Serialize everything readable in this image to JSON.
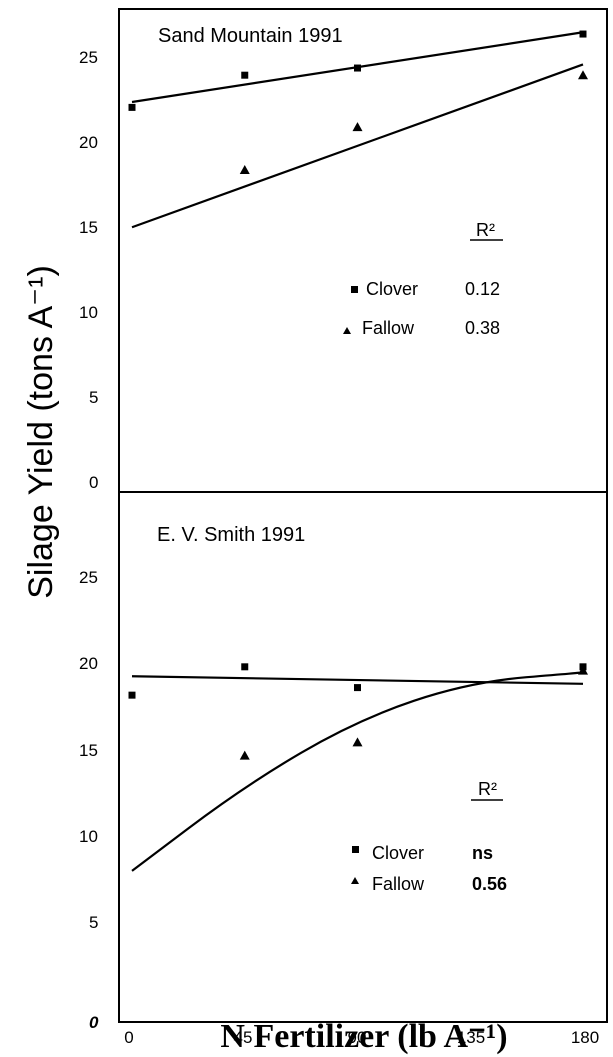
{
  "colors": {
    "ink": "#000000",
    "background": "#ffffff"
  },
  "chart_data": [
    {
      "type": "scatter",
      "title": "Sand Mountain 1991",
      "xlabel": "N Fertilizer (lb A⁻¹)",
      "ylabel": "Silage Yield (tons A⁻¹)",
      "xlim": [
        0,
        180
      ],
      "ylim": [
        0,
        27
      ],
      "x_ticks": [
        "0",
        "45",
        "90",
        "135",
        "180"
      ],
      "y_ticks": [
        "0",
        "5",
        "10",
        "15",
        "20",
        "25"
      ],
      "grid": false,
      "legend_title": "R²",
      "series": [
        {
          "name": "Clover",
          "marker": "square",
          "r2": "0.12",
          "points": [
            [
              0,
              21.5
            ],
            [
              45,
              23.3
            ],
            [
              90,
              23.7
            ],
            [
              180,
              25.6
            ]
          ],
          "fit": {
            "kind": "linear",
            "points": [
              [
                0,
                21.8
              ],
              [
                180,
                25.7
              ]
            ]
          }
        },
        {
          "name": "Fallow",
          "marker": "triangle",
          "r2": "0.38",
          "points": [
            [
              45,
              18.0
            ],
            [
              90,
              20.4
            ],
            [
              180,
              23.3
            ]
          ],
          "fit": {
            "kind": "linear",
            "points": [
              [
                0,
                14.8
              ],
              [
                180,
                23.9
              ]
            ]
          }
        }
      ]
    },
    {
      "type": "scatter",
      "title": "E. V. Smith 1991",
      "xlabel": "N Fertilizer (lb A⁻¹)",
      "ylabel": "Silage Yield (tons A⁻¹)",
      "xlim": [
        0,
        180
      ],
      "ylim": [
        0,
        28
      ],
      "x_ticks": [
        "0",
        "45",
        "90",
        "135",
        "180"
      ],
      "y_ticks": [
        "0",
        "5",
        "10",
        "15",
        "20",
        "25"
      ],
      "grid": false,
      "legend_title": "R²",
      "series": [
        {
          "name": "Clover",
          "marker": "square",
          "r2": "ns",
          "points": [
            [
              0,
              17.3
            ],
            [
              45,
              18.8
            ],
            [
              90,
              17.7
            ],
            [
              180,
              18.8
            ]
          ],
          "fit": {
            "kind": "linear",
            "points": [
              [
                0,
                18.3
              ],
              [
                180,
                17.9
              ]
            ]
          }
        },
        {
          "name": "Fallow",
          "marker": "triangle",
          "r2": "0.56",
          "points": [
            [
              45,
              14.1
            ],
            [
              90,
              14.8
            ],
            [
              180,
              18.6
            ]
          ],
          "fit": {
            "kind": "quadratic",
            "points": [
              [
                0,
                8.0
              ],
              [
                45,
                12.5
              ],
              [
                90,
                16.0
              ],
              [
                135,
                18.0
              ],
              [
                180,
                18.5
              ]
            ]
          }
        }
      ]
    }
  ],
  "labels": {
    "top_title": "Sand Mountain 1991",
    "bottom_title": "E. V. Smith 1991",
    "y_axis_title": "Silage Yield (tons A⁻¹)",
    "x_axis_title": "N Fertilizer (lb A⁻¹)",
    "legend_r2": "R²",
    "legend_clover": "Clover",
    "legend_fallow": "Fallow",
    "top_r2_clover": "0.12",
    "top_r2_fallow": "0.38",
    "bottom_r2_clover": "ns",
    "bottom_r2_fallow": "0.56",
    "x_ticks": [
      "0",
      "45",
      "90",
      "135",
      "180"
    ],
    "top_y_ticks": [
      "25",
      "20",
      "15",
      "10",
      "5",
      "0"
    ],
    "bottom_y_ticks": [
      "25",
      "20",
      "15",
      "10",
      "5",
      "0"
    ]
  }
}
